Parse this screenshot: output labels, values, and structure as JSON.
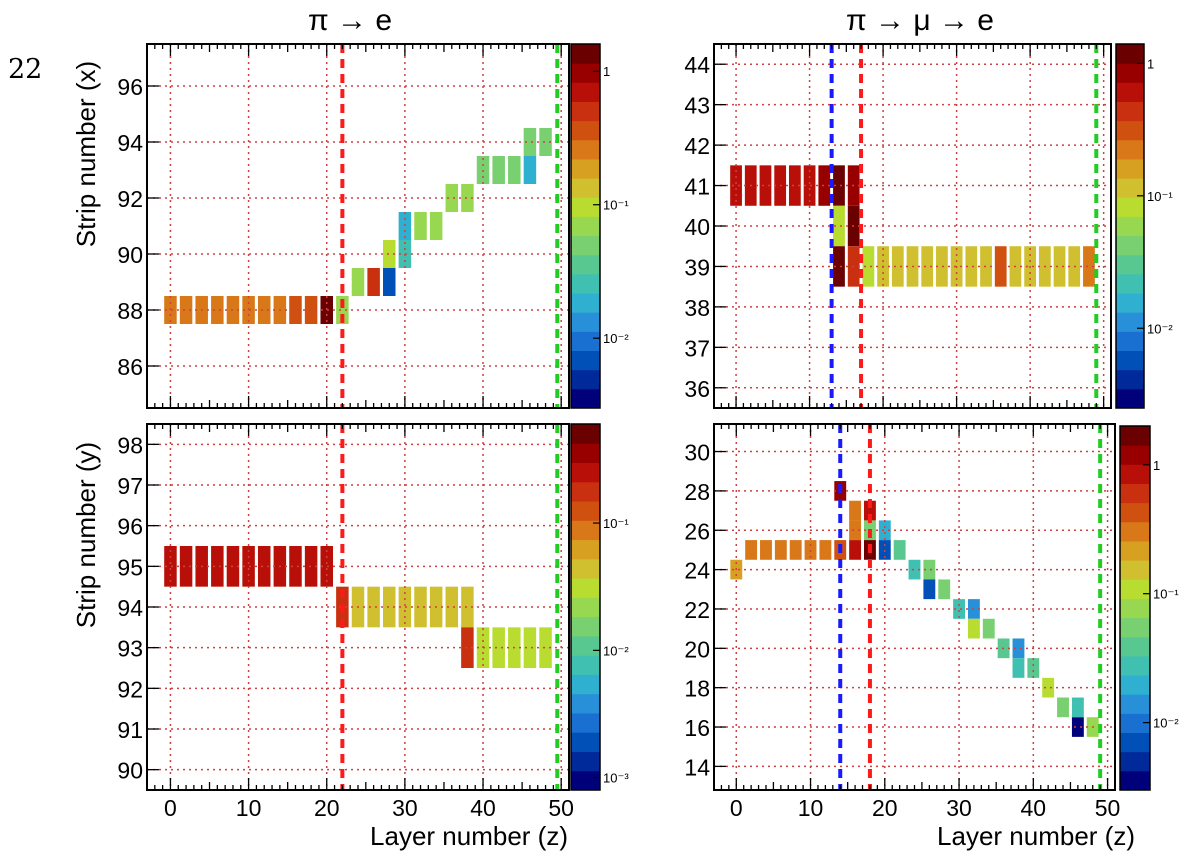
{
  "page_number": "22",
  "column_titles": [
    "π → e",
    "π → μ → e"
  ],
  "colors": {
    "grid": "#d04040",
    "red_line": "#ff1a1a",
    "blue_line": "#1a1aff",
    "green_line": "#22cc22",
    "palette": [
      "#00007a",
      "#002a9a",
      "#0050b8",
      "#1a70d0",
      "#2890d8",
      "#30b0d0",
      "#40c0b0",
      "#58c890",
      "#78d070",
      "#98d850",
      "#b8dc30",
      "#d0c030",
      "#d8a020",
      "#d87818",
      "#d05010",
      "#c83010",
      "#b81008",
      "#980000",
      "#6a0000"
    ]
  },
  "chart_data": [
    {
      "type": "heatmap",
      "id": "pi-e-x",
      "xlabel": "",
      "ylabel": "Strip number (x)",
      "xlim": [
        -3,
        51
      ],
      "ylim": [
        84.5,
        97.5
      ],
      "xticks": [
        0,
        10,
        20,
        30,
        40,
        50
      ],
      "xtick_labels": [],
      "yticks": [
        86,
        88,
        90,
        92,
        94,
        96
      ],
      "ytick_labels": [
        "86",
        "88",
        "90",
        "92",
        "94",
        "96"
      ],
      "grid": true,
      "colorbar": {
        "log": true,
        "min": 0.003,
        "max": 1.6,
        "ticks": [
          1,
          0.1,
          0.01
        ],
        "tick_labels": [
          "1",
          "10⁻¹",
          "10⁻²"
        ]
      },
      "vlines": [
        {
          "x": 22,
          "color": "red"
        },
        {
          "x": 49.5,
          "color": "green"
        }
      ],
      "cells": [
        {
          "x": 0,
          "y": 88,
          "v": 0.3
        },
        {
          "x": 2,
          "y": 88,
          "v": 0.3
        },
        {
          "x": 4,
          "y": 88,
          "v": 0.3
        },
        {
          "x": 6,
          "y": 88,
          "v": 0.3
        },
        {
          "x": 8,
          "y": 88,
          "v": 0.3
        },
        {
          "x": 10,
          "y": 88,
          "v": 0.3
        },
        {
          "x": 12,
          "y": 88,
          "v": 0.3
        },
        {
          "x": 14,
          "y": 88,
          "v": 0.3
        },
        {
          "x": 16,
          "y": 88,
          "v": 0.35
        },
        {
          "x": 18,
          "y": 88,
          "v": 0.4
        },
        {
          "x": 20,
          "y": 88,
          "v": 1.4
        },
        {
          "x": 22,
          "y": 88,
          "v": 0.06
        },
        {
          "x": 24,
          "y": 89,
          "v": 0.06
        },
        {
          "x": 26,
          "y": 89,
          "v": 0.5
        },
        {
          "x": 28,
          "y": 90,
          "v": 0.1
        },
        {
          "x": 28,
          "y": 89,
          "v": 0.008
        },
        {
          "x": 30,
          "y": 91,
          "v": 0.02
        },
        {
          "x": 30,
          "y": 90,
          "v": 0.025
        },
        {
          "x": 32,
          "y": 91,
          "v": 0.07
        },
        {
          "x": 34,
          "y": 91,
          "v": 0.07
        },
        {
          "x": 36,
          "y": 92,
          "v": 0.08
        },
        {
          "x": 38,
          "y": 92,
          "v": 0.08
        },
        {
          "x": 40,
          "y": 93,
          "v": 0.05
        },
        {
          "x": 42,
          "y": 93,
          "v": 0.05
        },
        {
          "x": 44,
          "y": 93,
          "v": 0.05
        },
        {
          "x": 46,
          "y": 94,
          "v": 0.05
        },
        {
          "x": 46,
          "y": 93,
          "v": 0.02
        },
        {
          "x": 48,
          "y": 94,
          "v": 0.05
        }
      ]
    },
    {
      "type": "heatmap",
      "id": "pi-mu-e-x",
      "xlabel": "",
      "ylabel": "",
      "xlim": [
        -3,
        51
      ],
      "ylim": [
        35.5,
        44.5
      ],
      "xticks": [
        0,
        10,
        20,
        30,
        40,
        50
      ],
      "xtick_labels": [],
      "yticks": [
        36,
        37,
        38,
        39,
        40,
        41,
        42,
        43,
        44
      ],
      "ytick_labels": [
        "36",
        "37",
        "38",
        "39",
        "40",
        "41",
        "42",
        "43",
        "44"
      ],
      "grid": true,
      "colorbar": {
        "log": true,
        "min": 0.0025,
        "max": 1.4,
        "ticks": [
          1,
          0.1,
          0.01
        ],
        "tick_labels": [
          "1",
          "10⁻¹",
          "10⁻²"
        ]
      },
      "vlines": [
        {
          "x": 13,
          "color": "blue"
        },
        {
          "x": 17,
          "color": "red"
        },
        {
          "x": 49,
          "color": "green"
        }
      ],
      "cells": [
        {
          "x": 0,
          "y": 41,
          "v": 0.7
        },
        {
          "x": 2,
          "y": 41,
          "v": 0.7
        },
        {
          "x": 4,
          "y": 41,
          "v": 0.7
        },
        {
          "x": 6,
          "y": 41,
          "v": 0.7
        },
        {
          "x": 8,
          "y": 41,
          "v": 0.7
        },
        {
          "x": 10,
          "y": 41,
          "v": 0.7
        },
        {
          "x": 12,
          "y": 41,
          "v": 0.8
        },
        {
          "x": 14,
          "y": 41,
          "v": 1.1
        },
        {
          "x": 16,
          "y": 41,
          "v": 0.9
        },
        {
          "x": 14,
          "y": 40,
          "v": 0.08
        },
        {
          "x": 14,
          "y": 39,
          "v": 1.2
        },
        {
          "x": 16,
          "y": 40,
          "v": 1.2
        },
        {
          "x": 16,
          "y": 39,
          "v": 0.5
        },
        {
          "x": 18,
          "y": 39,
          "v": 0.08
        },
        {
          "x": 20,
          "y": 39,
          "v": 0.1
        },
        {
          "x": 22,
          "y": 39,
          "v": 0.1
        },
        {
          "x": 24,
          "y": 39,
          "v": 0.1
        },
        {
          "x": 26,
          "y": 39,
          "v": 0.1
        },
        {
          "x": 28,
          "y": 39,
          "v": 0.1
        },
        {
          "x": 30,
          "y": 39,
          "v": 0.1
        },
        {
          "x": 32,
          "y": 39,
          "v": 0.1
        },
        {
          "x": 34,
          "y": 39,
          "v": 0.1
        },
        {
          "x": 36,
          "y": 39,
          "v": 0.3
        },
        {
          "x": 38,
          "y": 39,
          "v": 0.1
        },
        {
          "x": 40,
          "y": 39,
          "v": 0.1
        },
        {
          "x": 42,
          "y": 39,
          "v": 0.1
        },
        {
          "x": 44,
          "y": 39,
          "v": 0.1
        },
        {
          "x": 46,
          "y": 39,
          "v": 0.1
        },
        {
          "x": 48,
          "y": 39,
          "v": 0.2
        }
      ]
    },
    {
      "type": "heatmap",
      "id": "pi-e-y",
      "xlabel": "Layer number (z)",
      "ylabel": "Strip number (y)",
      "xlim": [
        -3,
        51
      ],
      "ylim": [
        89.5,
        98.5
      ],
      "xticks": [
        0,
        10,
        20,
        30,
        40,
        50
      ],
      "xtick_labels": [
        "0",
        "10",
        "20",
        "30",
        "40",
        "50"
      ],
      "yticks": [
        90,
        91,
        92,
        93,
        94,
        95,
        96,
        97,
        98
      ],
      "ytick_labels": [
        "90",
        "91",
        "92",
        "93",
        "94",
        "95",
        "96",
        "97",
        "98"
      ],
      "grid": true,
      "colorbar": {
        "log": true,
        "min": 0.0008,
        "max": 0.6,
        "ticks": [
          0.1,
          0.01,
          0.001
        ],
        "tick_labels": [
          "10⁻¹",
          "10⁻²",
          "10⁻³"
        ]
      },
      "vlines": [
        {
          "x": 22,
          "color": "red"
        },
        {
          "x": 49.5,
          "color": "green"
        }
      ],
      "cells": [
        {
          "x": 0,
          "y": 95,
          "v": 0.25
        },
        {
          "x": 2,
          "y": 95,
          "v": 0.25
        },
        {
          "x": 4,
          "y": 95,
          "v": 0.25
        },
        {
          "x": 6,
          "y": 95,
          "v": 0.25
        },
        {
          "x": 8,
          "y": 95,
          "v": 0.25
        },
        {
          "x": 10,
          "y": 95,
          "v": 0.25
        },
        {
          "x": 12,
          "y": 95,
          "v": 0.25
        },
        {
          "x": 14,
          "y": 95,
          "v": 0.25
        },
        {
          "x": 16,
          "y": 95,
          "v": 0.25
        },
        {
          "x": 18,
          "y": 95,
          "v": 0.25
        },
        {
          "x": 20,
          "y": 95,
          "v": 0.25
        },
        {
          "x": 22,
          "y": 94,
          "v": 0.2
        },
        {
          "x": 24,
          "y": 94,
          "v": 0.05
        },
        {
          "x": 26,
          "y": 94,
          "v": 0.05
        },
        {
          "x": 28,
          "y": 94,
          "v": 0.05
        },
        {
          "x": 30,
          "y": 94,
          "v": 0.05
        },
        {
          "x": 32,
          "y": 94,
          "v": 0.05
        },
        {
          "x": 34,
          "y": 94,
          "v": 0.05
        },
        {
          "x": 36,
          "y": 94,
          "v": 0.05
        },
        {
          "x": 38,
          "y": 94,
          "v": 0.05
        },
        {
          "x": 38,
          "y": 93,
          "v": 0.2
        },
        {
          "x": 40,
          "y": 93,
          "v": 0.035
        },
        {
          "x": 42,
          "y": 93,
          "v": 0.035
        },
        {
          "x": 44,
          "y": 93,
          "v": 0.035
        },
        {
          "x": 46,
          "y": 93,
          "v": 0.035
        },
        {
          "x": 48,
          "y": 93,
          "v": 0.035
        }
      ]
    },
    {
      "type": "heatmap",
      "id": "pi-mu-e-y",
      "xlabel": "Layer number (z)",
      "ylabel": "",
      "xlim": [
        -3,
        51
      ],
      "ylim": [
        12.8,
        31.4
      ],
      "xticks": [
        0,
        10,
        20,
        30,
        40,
        50
      ],
      "xtick_labels": [
        "0",
        "10",
        "20",
        "30",
        "40",
        "50"
      ],
      "yticks": [
        14,
        16,
        18,
        20,
        22,
        24,
        26,
        28,
        30
      ],
      "ytick_labels": [
        "14",
        "16",
        "18",
        "20",
        "22",
        "24",
        "26",
        "28",
        "30"
      ],
      "grid": true,
      "colorbar": {
        "log": true,
        "min": 0.003,
        "max": 2.0,
        "ticks": [
          1,
          0.1,
          0.01
        ],
        "tick_labels": [
          "1",
          "10⁻¹",
          "10⁻²"
        ]
      },
      "vlines": [
        {
          "x": 14,
          "color": "blue"
        },
        {
          "x": 18,
          "color": "red"
        },
        {
          "x": 49,
          "color": "green"
        }
      ],
      "cells": [
        {
          "x": 0,
          "y": 24,
          "v": 0.2
        },
        {
          "x": 2,
          "y": 25,
          "v": 0.3
        },
        {
          "x": 4,
          "y": 25,
          "v": 0.3
        },
        {
          "x": 6,
          "y": 25,
          "v": 0.3
        },
        {
          "x": 8,
          "y": 25,
          "v": 0.3
        },
        {
          "x": 10,
          "y": 25,
          "v": 0.3
        },
        {
          "x": 12,
          "y": 25,
          "v": 0.3
        },
        {
          "x": 14,
          "y": 25,
          "v": 0.5
        },
        {
          "x": 14,
          "y": 28,
          "v": 1.2
        },
        {
          "x": 16,
          "y": 27,
          "v": 0.3
        },
        {
          "x": 16,
          "y": 26,
          "v": 0.35
        },
        {
          "x": 16,
          "y": 25,
          "v": 0.8
        },
        {
          "x": 18,
          "y": 27,
          "v": 0.9
        },
        {
          "x": 18,
          "y": 26,
          "v": 0.06
        },
        {
          "x": 18,
          "y": 25,
          "v": 1.5
        },
        {
          "x": 20,
          "y": 26,
          "v": 0.02
        },
        {
          "x": 20,
          "y": 25,
          "v": 0.008
        },
        {
          "x": 22,
          "y": 25,
          "v": 0.04
        },
        {
          "x": 24,
          "y": 24,
          "v": 0.03
        },
        {
          "x": 26,
          "y": 24,
          "v": 0.05
        },
        {
          "x": 26,
          "y": 23,
          "v": 0.008
        },
        {
          "x": 28,
          "y": 23,
          "v": 0.06
        },
        {
          "x": 30,
          "y": 22,
          "v": 0.03
        },
        {
          "x": 32,
          "y": 22,
          "v": 0.015
        },
        {
          "x": 32,
          "y": 21,
          "v": 0.1
        },
        {
          "x": 34,
          "y": 21,
          "v": 0.06
        },
        {
          "x": 36,
          "y": 20,
          "v": 0.04
        },
        {
          "x": 38,
          "y": 20,
          "v": 0.015
        },
        {
          "x": 38,
          "y": 19,
          "v": 0.025
        },
        {
          "x": 40,
          "y": 19,
          "v": 0.04
        },
        {
          "x": 42,
          "y": 18,
          "v": 0.12
        },
        {
          "x": 44,
          "y": 17,
          "v": 0.05
        },
        {
          "x": 46,
          "y": 16,
          "v": 0.004
        },
        {
          "x": 46,
          "y": 17,
          "v": 0.025
        },
        {
          "x": 48,
          "y": 16,
          "v": 0.07
        }
      ]
    }
  ]
}
